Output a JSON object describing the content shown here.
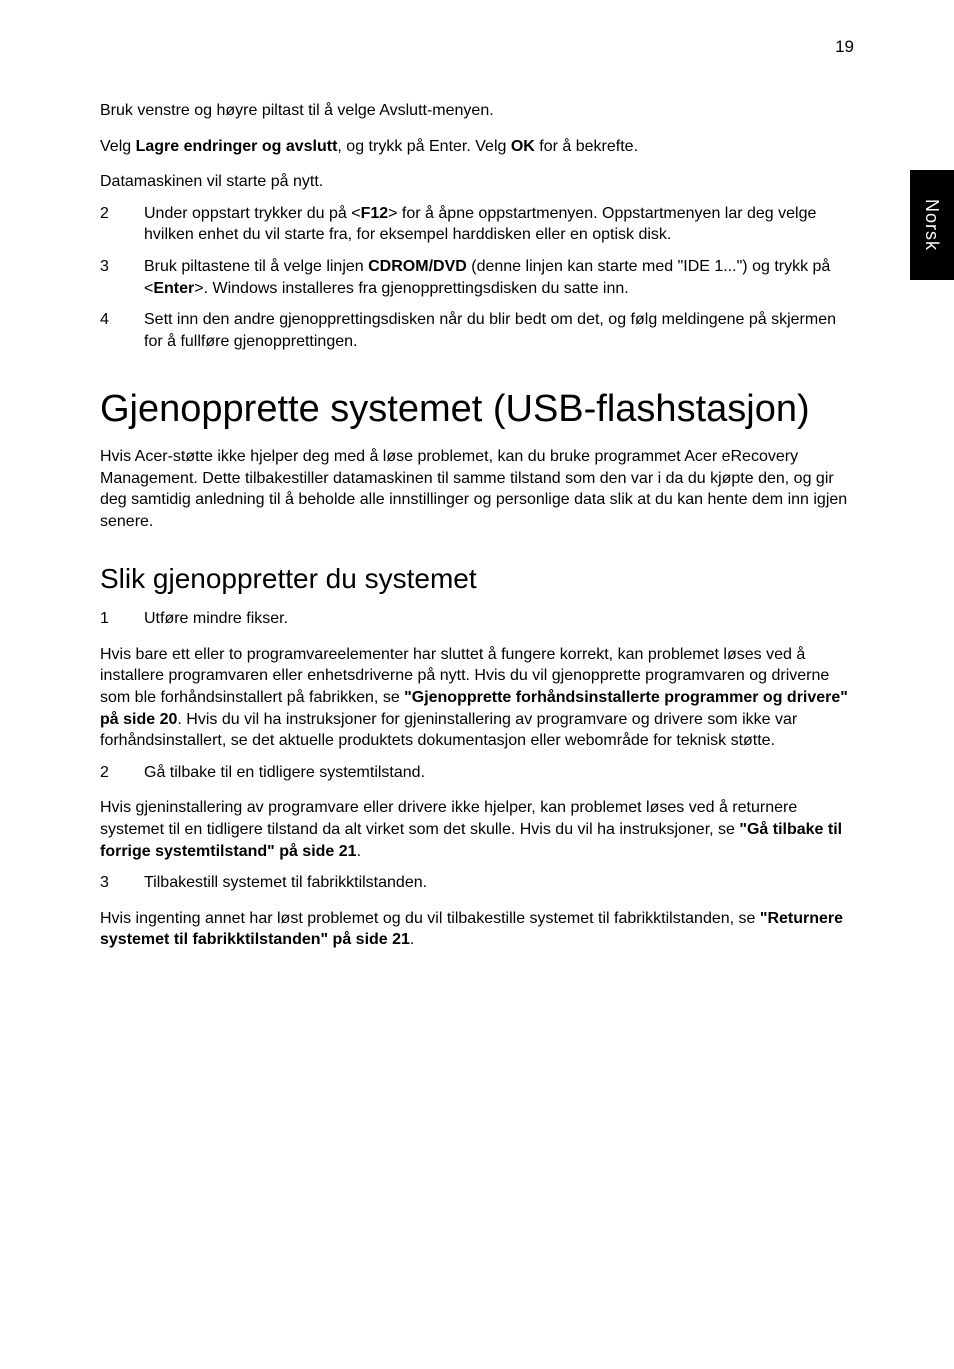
{
  "page_number": "19",
  "side_tab": "Norsk",
  "intro": {
    "p1_a": "Bruk venstre og høyre piltast til å velge Avslutt-menyen.",
    "p2_prefix": "Velg ",
    "p2_bold1": "Lagre endringer og avslutt",
    "p2_mid": ", og trykk på Enter. Velg ",
    "p2_bold2": "OK",
    "p2_suffix": " for å bekrefte.",
    "p3": "Datamaskinen vil starte på nytt."
  },
  "list1": {
    "n2": "2",
    "t2_a": "Under oppstart trykker du på <",
    "t2_b": "F12",
    "t2_c": "> for å åpne oppstartmenyen. Oppstartmenyen lar deg velge hvilken enhet du vil starte fra, for eksempel harddisken eller en optisk disk.",
    "n3": "3",
    "t3_a": "Bruk piltastene til å velge linjen ",
    "t3_b": "CDROM/DVD",
    "t3_c": " (denne linjen kan starte med \"IDE 1...\") og trykk på <",
    "t3_d": "Enter",
    "t3_e": ">. Windows installeres fra gjenopprettingsdisken du satte inn.",
    "n4": "4",
    "t4": "Sett inn den andre gjenopprettingsdisken når du blir bedt om det, og følg meldingene på skjermen for å fullføre gjenopprettingen."
  },
  "h1": "Gjenopprette systemet (USB-flashstasjon)",
  "after_h1": "Hvis Acer-støtte ikke hjelper deg med å løse problemet, kan du bruke programmet Acer eRecovery Management. Dette tilbakestiller datamaskinen til samme tilstand som den var i da du kjøpte den, og gir deg samtidig anledning til å beholde alle innstillinger og personlige data slik at du kan hente dem inn igjen senere.",
  "h2": "Slik gjenoppretter du systemet",
  "step1": {
    "n": "1",
    "t": "Utføre mindre fikser."
  },
  "after_step1_a": "Hvis bare ett eller to programvareelementer har sluttet å fungere korrekt, kan problemet løses ved å installere programvaren eller enhetsdriverne på nytt. Hvis du vil gjenopprette programvaren og driverne som ble forhåndsinstallert på fabrikken, se ",
  "after_step1_b": "\"Gjenopprette forhåndsinstallerte programmer og drivere\" på side 20",
  "after_step1_c": ". Hvis du vil ha instruksjoner for gjeninstallering av programvare og drivere som ikke var forhåndsinstallert, se det aktuelle produktets dokumentasjon eller webområde for teknisk støtte.",
  "step2": {
    "n": "2",
    "t": "Gå tilbake til en tidligere systemtilstand."
  },
  "after_step2_a": "Hvis gjeninstallering av programvare eller drivere ikke hjelper, kan problemet løses ved å returnere systemet til en tidligere tilstand da alt virket som det skulle. Hvis du vil ha instruksjoner, se ",
  "after_step2_b": "\"Gå tilbake til forrige systemtilstand\" på side 21",
  "after_step2_c": ".",
  "step3": {
    "n": "3",
    "t": "Tilbakestill systemet til fabrikktilstanden."
  },
  "after_step3_a": "Hvis ingenting annet har løst problemet og du vil tilbakestille systemet til fabrikktilstanden, se ",
  "after_step3_b": "\"Returnere systemet til fabrikktilstanden\" på side 21",
  "after_step3_c": "."
}
